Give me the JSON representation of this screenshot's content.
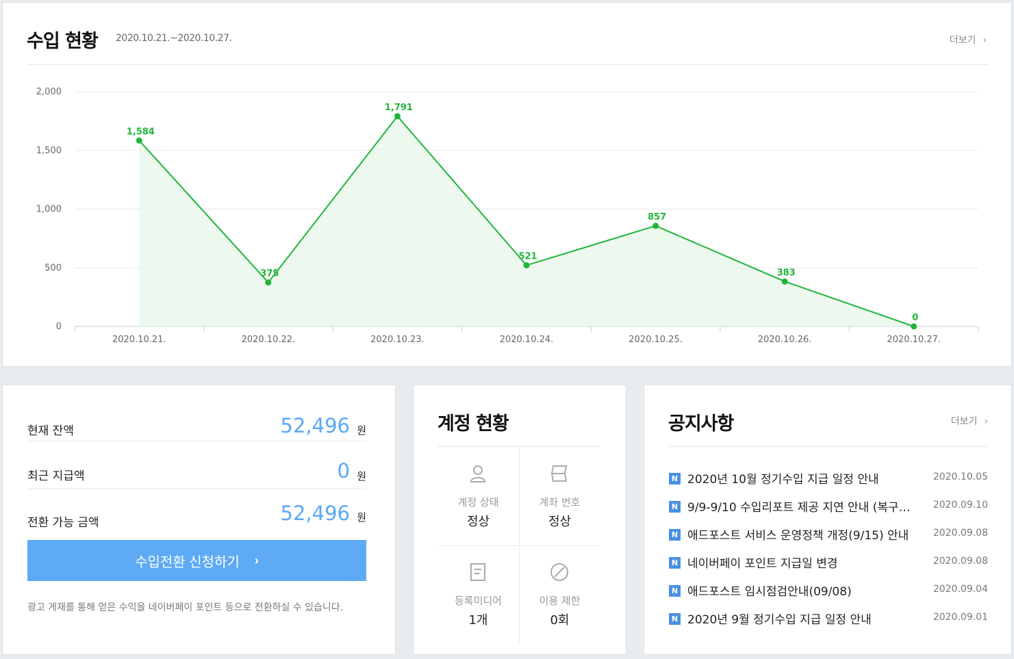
{
  "revenue": {
    "title": "수입 현황",
    "range": "2020.10.21.~2020.10.27.",
    "more_label": "더보기",
    "accent_color": "#1fb53a"
  },
  "chart_data": {
    "type": "area",
    "categories": [
      "2020.10.21.",
      "2020.10.22.",
      "2020.10.23.",
      "2020.10.24.",
      "2020.10.25.",
      "2020.10.26.",
      "2020.10.27."
    ],
    "values": [
      1584,
      375,
      1791,
      521,
      857,
      383,
      0
    ],
    "value_labels": [
      "1,584",
      "375",
      "1,791",
      "521",
      "857",
      "383",
      "0"
    ],
    "yticks": [
      0,
      500,
      1000,
      1500,
      2000
    ],
    "ytick_labels": [
      "0",
      "500",
      "1,000",
      "1,500",
      "2,000"
    ],
    "ylim": [
      0,
      2000
    ],
    "grid": true,
    "title": "",
    "xlabel": "",
    "ylabel": ""
  },
  "balance": {
    "rows": [
      {
        "label": "현재 잔액",
        "amount": "52,496",
        "unit": "원"
      },
      {
        "label": "최근 지급액",
        "amount": "0",
        "unit": "원"
      },
      {
        "label": "전환 가능 금액",
        "amount": "52,496",
        "unit": "원"
      }
    ],
    "button_label": "수입전환 신청하기",
    "button_chevron": "›",
    "note": "광고 게재를 통해 얻은 수익을 네이버페이 포인트 등으로 전환하실 수 있습니다."
  },
  "account": {
    "title": "계정 현황",
    "cells": [
      {
        "icon": "person-icon",
        "label": "계정 상태",
        "value": "정상"
      },
      {
        "icon": "bank-account-icon",
        "label": "계좌 번호",
        "value": "정상"
      },
      {
        "icon": "document-icon",
        "label": "등록미디어",
        "value": "1개"
      },
      {
        "icon": "prohibited-icon",
        "label": "이용 제한",
        "value": "0회"
      }
    ]
  },
  "notice": {
    "title": "공지사항",
    "more_label": "더보기",
    "badge": "N",
    "items": [
      {
        "text": "2020년 10월 정기수입 지급 일정 안내",
        "date": "2020.10.05"
      },
      {
        "text": "9/9-9/10 수입리포트 제공 지연 안내 (복구…",
        "date": "2020.09.10"
      },
      {
        "text": "애드포스트 서비스 운영정책 개정(9/15) 안내",
        "date": "2020.09.08"
      },
      {
        "text": "네이버페이 포인트 지급일 변경",
        "date": "2020.09.08"
      },
      {
        "text": "애드포스트 임시점검안내(09/08)",
        "date": "2020.09.04"
      },
      {
        "text": "2020년 9월 정기수입 지급 일정 안내",
        "date": "2020.09.01"
      }
    ]
  }
}
